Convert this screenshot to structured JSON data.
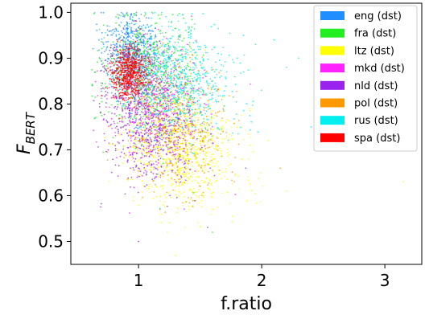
{
  "chart_data": {
    "type": "scatter",
    "title": "",
    "xlabel": "f.ratio",
    "ylabel_main": "F",
    "ylabel_sub": "BERT",
    "xlim": [
      0.45,
      3.3
    ],
    "ylim": [
      0.45,
      1.02
    ],
    "x_ticks": [
      1,
      2,
      3
    ],
    "x_tick_labels": [
      "1",
      "2",
      "3"
    ],
    "y_ticks": [
      0.5,
      0.6,
      0.7,
      0.8,
      0.9,
      1.0
    ],
    "y_tick_labels": [
      "0.5",
      "0.6",
      "0.7",
      "0.8",
      "0.9",
      "1.0"
    ],
    "grid": false,
    "legend_position": "top-right",
    "series": [
      {
        "name": "eng (dst)",
        "color": "#1f8fff",
        "cluster": {
          "cx": 0.95,
          "cy": 0.91,
          "sx": 0.12,
          "sy": 0.045,
          "n": 700,
          "pts": [
            [
              0.82,
              0.96
            ],
            [
              0.9,
              0.93
            ],
            [
              1.0,
              0.89
            ],
            [
              1.15,
              0.85
            ],
            [
              0.75,
              0.95
            ],
            [
              1.3,
              0.83
            ]
          ]
        }
      },
      {
        "name": "fra (dst)",
        "color": "#22ee22",
        "cluster": {
          "cx": 1.1,
          "cy": 0.86,
          "sx": 0.2,
          "sy": 0.07,
          "n": 650,
          "pts": [
            [
              1.0,
              0.95
            ],
            [
              1.1,
              0.9
            ],
            [
              1.3,
              0.8
            ],
            [
              1.5,
              0.78
            ],
            [
              1.2,
              0.68
            ],
            [
              0.85,
              0.97
            ]
          ]
        }
      },
      {
        "name": "ltz (dst)",
        "color": "#ffff00",
        "cluster": {
          "cx": 1.35,
          "cy": 0.7,
          "sx": 0.22,
          "sy": 0.06,
          "n": 850,
          "pts": [
            [
              1.2,
              0.7
            ],
            [
              1.4,
              0.66
            ],
            [
              1.6,
              0.72
            ],
            [
              1.3,
              0.62
            ],
            [
              1.5,
              0.8
            ],
            [
              1.8,
              0.75
            ]
          ]
        }
      },
      {
        "name": "mkd (dst)",
        "color": "#ff22ff",
        "cluster": {
          "cx": 1.15,
          "cy": 0.8,
          "sx": 0.2,
          "sy": 0.07,
          "n": 400,
          "pts": [
            [
              1.0,
              0.82
            ],
            [
              1.2,
              0.78
            ],
            [
              1.3,
              0.72
            ],
            [
              1.1,
              0.7
            ],
            [
              1.4,
              0.85
            ],
            [
              0.95,
              0.76
            ]
          ]
        }
      },
      {
        "name": "nld (dst)",
        "color": "#9a22ee",
        "cluster": {
          "cx": 1.1,
          "cy": 0.77,
          "sx": 0.18,
          "sy": 0.07,
          "n": 700,
          "pts": [
            [
              1.0,
              0.8
            ],
            [
              1.1,
              0.75
            ],
            [
              1.2,
              0.7
            ],
            [
              1.3,
              0.68
            ],
            [
              0.9,
              0.84
            ],
            [
              1.05,
              0.62
            ]
          ]
        }
      },
      {
        "name": "pol (dst)",
        "color": "#ff9900",
        "cluster": {
          "cx": 1.3,
          "cy": 0.76,
          "sx": 0.2,
          "sy": 0.07,
          "n": 500,
          "pts": [
            [
              1.2,
              0.8
            ],
            [
              1.4,
              0.75
            ],
            [
              1.5,
              0.7
            ],
            [
              1.3,
              0.65
            ],
            [
              1.6,
              0.82
            ],
            [
              1.25,
              0.72
            ]
          ]
        }
      },
      {
        "name": "rus (dst)",
        "color": "#00eeee",
        "cluster": {
          "cx": 1.3,
          "cy": 0.86,
          "sx": 0.22,
          "sy": 0.06,
          "n": 700,
          "pts": [
            [
              1.2,
              0.88
            ],
            [
              1.5,
              0.85
            ],
            [
              1.6,
              0.82
            ],
            [
              1.8,
              0.9
            ],
            [
              2.0,
              0.83
            ],
            [
              1.4,
              0.78
            ]
          ]
        }
      },
      {
        "name": "spa (dst)",
        "color": "#ff0000",
        "cluster": {
          "cx": 0.92,
          "cy": 0.87,
          "sx": 0.07,
          "sy": 0.03,
          "n": 650,
          "pts": [
            [
              0.88,
              0.89
            ],
            [
              0.92,
              0.86
            ],
            [
              0.97,
              0.84
            ],
            [
              0.85,
              0.9
            ],
            [
              1.0,
              0.88
            ],
            [
              0.9,
              0.82
            ]
          ]
        }
      }
    ]
  }
}
